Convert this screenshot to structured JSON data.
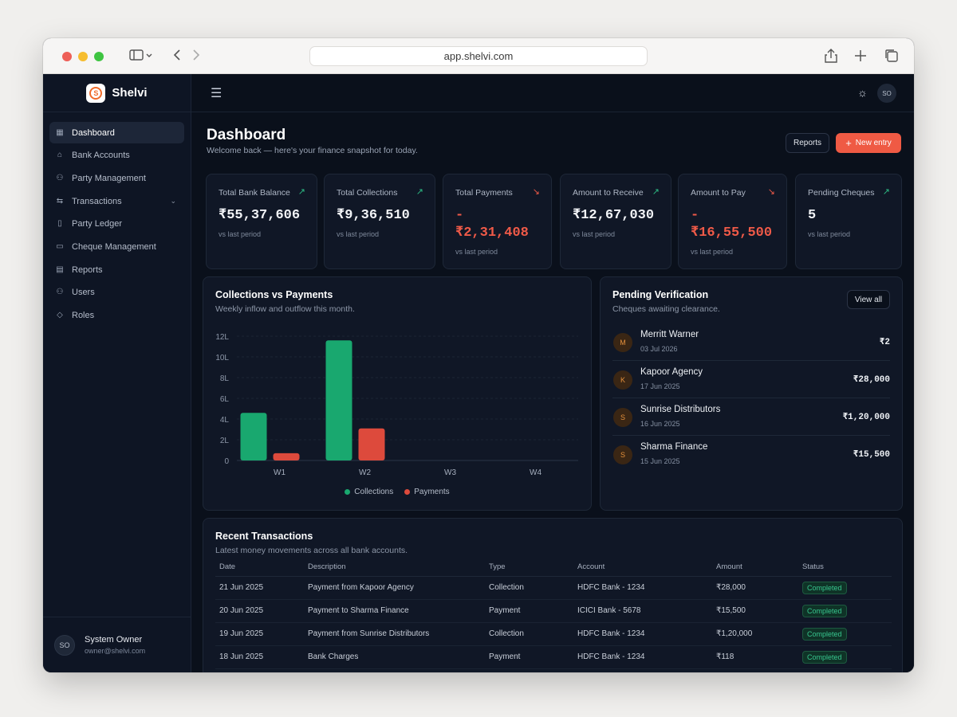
{
  "browser": {
    "url": "app.shelvi.com"
  },
  "brand": {
    "name": "Shelvi",
    "logo_letter": "S"
  },
  "sidebar": {
    "items": [
      {
        "label": "Dashboard",
        "icon": "grid-icon"
      },
      {
        "label": "Bank Accounts",
        "icon": "bank-icon"
      },
      {
        "label": "Party Management",
        "icon": "users-icon"
      },
      {
        "label": "Transactions",
        "icon": "arrows-icon"
      },
      {
        "label": "Party Ledger",
        "icon": "book-icon"
      },
      {
        "label": "Cheque Management",
        "icon": "cheque-icon"
      },
      {
        "label": "Reports",
        "icon": "document-icon"
      },
      {
        "label": "Users",
        "icon": "user-group-icon"
      },
      {
        "label": "Roles",
        "icon": "shield-icon"
      }
    ],
    "user": {
      "initials": "SO",
      "name": "System Owner",
      "email": "owner@shelvi.com"
    }
  },
  "topbar": {
    "avatar": "SO"
  },
  "page": {
    "title": "Dashboard",
    "subtitle": "Welcome back — here's your finance snapshot for today.",
    "reports_label": "Reports",
    "new_entry_label": "New entry"
  },
  "stats": [
    {
      "label": "Total Bank Balance",
      "value": "₹55,37,606",
      "note": "vs last period",
      "trend": "up"
    },
    {
      "label": "Total Collections",
      "value": "₹9,36,510",
      "note": "vs last period",
      "trend": "up"
    },
    {
      "label": "Total Payments",
      "value_sign": "-",
      "value": "₹2,31,408",
      "note": "vs last period",
      "trend": "down"
    },
    {
      "label": "Amount to Receive",
      "value": "₹12,67,030",
      "note": "vs last period",
      "trend": "up"
    },
    {
      "label": "Amount to Pay",
      "value_sign": "-",
      "value": "₹16,55,500",
      "note": "vs last period",
      "trend": "down"
    },
    {
      "label": "Pending Cheques",
      "value": "5",
      "note": "vs last period",
      "trend": "up"
    }
  ],
  "collections_chart": {
    "title": "Collections vs Payments",
    "subtitle": "Weekly inflow and outflow this month."
  },
  "chart_data": {
    "type": "bar",
    "categories": [
      "W1",
      "W2",
      "W3",
      "W4"
    ],
    "series": [
      {
        "name": "Collections",
        "values": [
          4.6,
          11.6,
          0,
          0
        ],
        "color": "#19a86f"
      },
      {
        "name": "Payments",
        "values": [
          0.7,
          3.1,
          0,
          0
        ],
        "color": "#dd4a3c"
      }
    ],
    "y_ticks": [
      "0",
      "2L",
      "4L",
      "6L",
      "8L",
      "10L",
      "12L"
    ],
    "ylim": [
      0,
      12
    ],
    "grid": true,
    "legend": "bottom"
  },
  "pending": {
    "title": "Pending Verification",
    "subtitle": "Cheques awaiting clearance.",
    "view_all": "View all",
    "items": [
      {
        "initial": "M",
        "name": "Merritt Warner",
        "date": "03 Jul 2026",
        "amount": "₹2"
      },
      {
        "initial": "K",
        "name": "Kapoor Agency",
        "date": "17 Jun 2025",
        "amount": "₹28,000"
      },
      {
        "initial": "S",
        "name": "Sunrise Distributors",
        "date": "16 Jun 2025",
        "amount": "₹1,20,000"
      },
      {
        "initial": "S",
        "name": "Sharma Finance",
        "date": "15 Jun 2025",
        "amount": "₹15,500"
      }
    ]
  },
  "transactions": {
    "title": "Recent Transactions",
    "subtitle": "Latest money movements across all bank accounts.",
    "columns": [
      "Date",
      "Description",
      "Type",
      "Account",
      "Amount",
      "Status"
    ],
    "rows": [
      [
        "21 Jun 2025",
        "Payment from Kapoor Agency",
        "Collection",
        "HDFC Bank - 1234",
        "₹28,000",
        "Completed"
      ],
      [
        "20 Jun 2025",
        "Payment to Sharma Finance",
        "Payment",
        "ICICI Bank - 5678",
        "₹15,500",
        "Completed"
      ],
      [
        "19 Jun 2025",
        "Payment from Sunrise Distributors",
        "Collection",
        "HDFC Bank - 1234",
        "₹1,20,000",
        "Completed"
      ],
      [
        "18 Jun 2025",
        "Bank Charges",
        "Payment",
        "HDFC Bank - 1234",
        "₹118",
        "Completed"
      ]
    ]
  }
}
